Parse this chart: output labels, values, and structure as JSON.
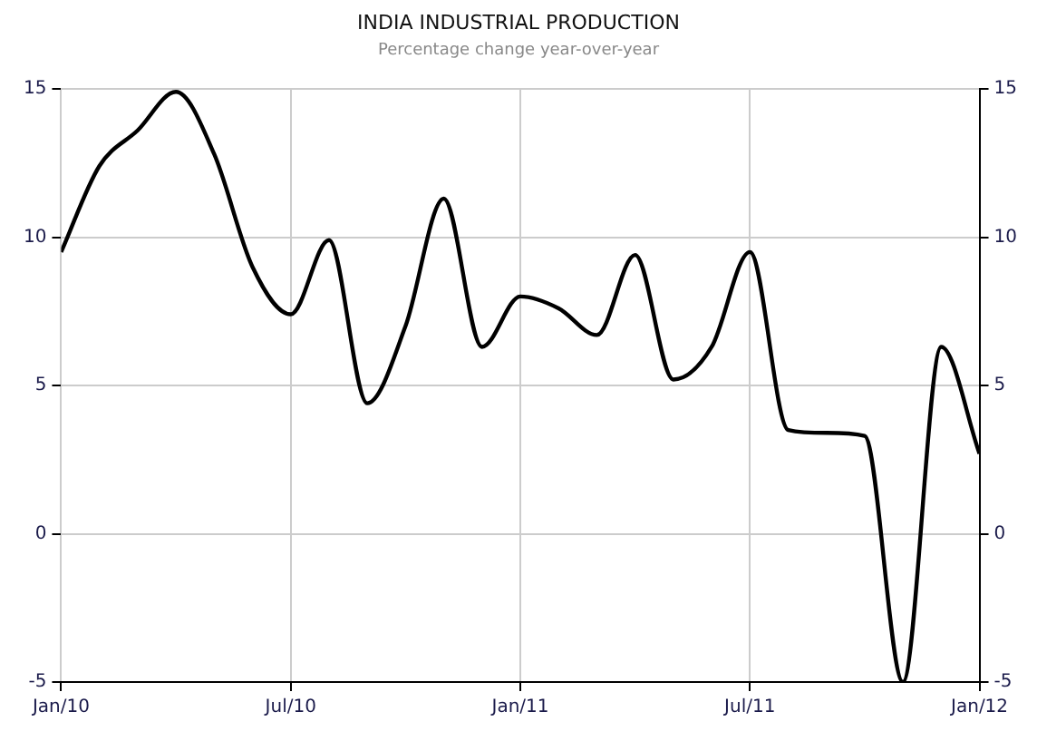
{
  "chart_data": {
    "type": "line",
    "title": "INDIA INDUSTRIAL PRODUCTION",
    "subtitle": "Percentage change year-over-year",
    "x": [
      "2010-01",
      "2010-02",
      "2010-03",
      "2010-04",
      "2010-05",
      "2010-06",
      "2010-07",
      "2010-08",
      "2010-09",
      "2010-10",
      "2010-11",
      "2010-12",
      "2011-01",
      "2011-02",
      "2011-03",
      "2011-04",
      "2011-05",
      "2011-06",
      "2011-07",
      "2011-08",
      "2011-09",
      "2011-10",
      "2011-11",
      "2011-12",
      "2012-01"
    ],
    "series": [
      {
        "color": "#000000",
        "values": [
          9.5,
          12.4,
          13.6,
          14.9,
          12.8,
          9.0,
          7.4,
          9.9,
          4.4,
          7.0,
          11.3,
          6.3,
          8.0,
          7.6,
          6.7,
          9.4,
          5.2,
          6.3,
          9.5,
          3.5,
          3.4,
          3.3,
          -5.0,
          6.3,
          2.7
        ]
      }
    ],
    "xlim": [
      "2010-01",
      "2012-01"
    ],
    "xticks": [
      {
        "value": "2010-01",
        "label": "Jan/10"
      },
      {
        "value": "2010-07",
        "label": "Jul/10"
      },
      {
        "value": "2011-01",
        "label": "Jan/11"
      },
      {
        "value": "2011-07",
        "label": "Jul/11"
      },
      {
        "value": "2012-01",
        "label": "Jan/12"
      }
    ],
    "ylim": [
      -5,
      15
    ],
    "yticks": [
      -5,
      0,
      5,
      10,
      15
    ],
    "y2lim": [
      -5,
      15
    ],
    "y2ticks": [
      -5,
      0,
      5,
      10,
      15
    ],
    "grid": true,
    "legend": false,
    "marker": "none",
    "line_style": "solid"
  }
}
